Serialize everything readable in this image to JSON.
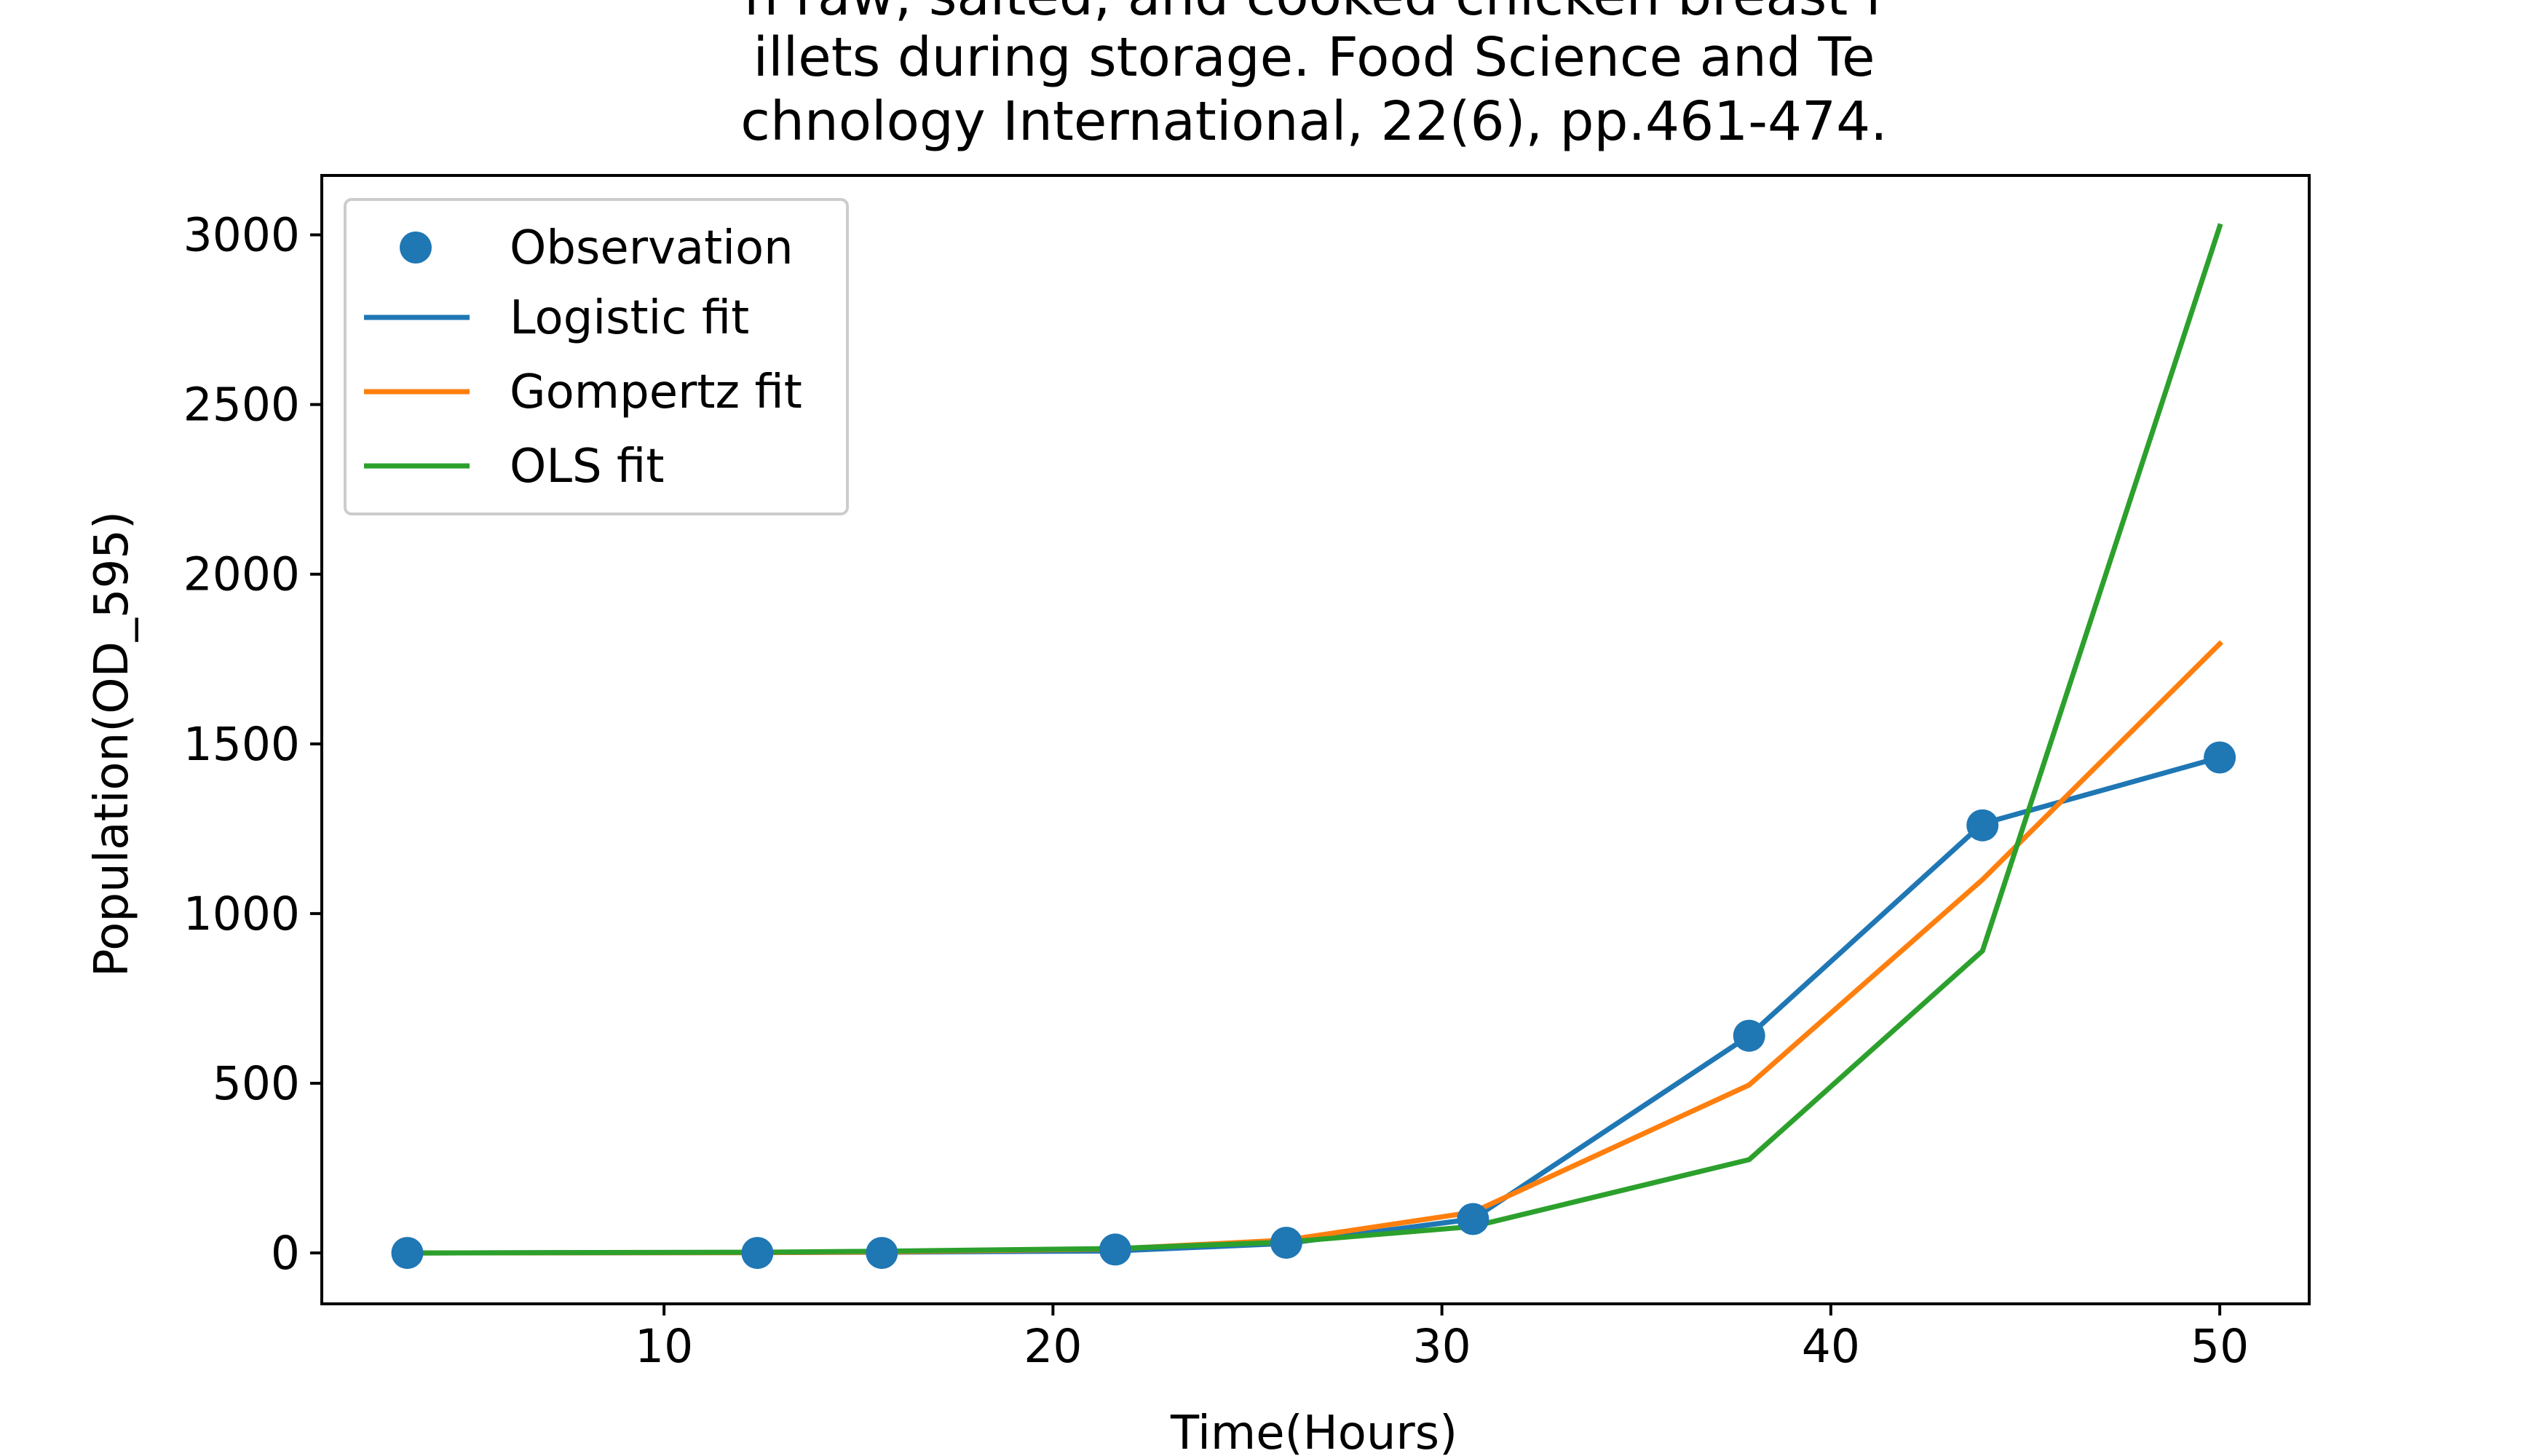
{
  "chart_data": {
    "type": "line",
    "title_lines": [
      "n raw, salted, and cooked chicken breast f",
      "illets during storage. Food Science and Te",
      "chnology International, 22(6), pp.461-474."
    ],
    "xlabel": "Time(Hours)",
    "ylabel": "Population(OD_595)",
    "xlim": [
      1.2,
      52.3
    ],
    "ylim": [
      -150,
      3175
    ],
    "x_ticks": [
      10,
      20,
      30,
      40,
      50
    ],
    "y_ticks": [
      0,
      500,
      1000,
      1500,
      2000,
      2500,
      3000
    ],
    "grid": false,
    "legend_position": "top-left",
    "x": [
      3.4,
      12.4,
      15.6,
      21.6,
      26.0,
      30.8,
      37.9,
      43.9,
      50.0
    ],
    "observation": {
      "name": "Observation",
      "color": "#1f77b4",
      "values": [
        0,
        0,
        0,
        10,
        30,
        100,
        640,
        1260,
        1460
      ]
    },
    "series": [
      {
        "name": "Logistic fit",
        "color": "#1f77b4",
        "values": [
          0,
          1,
          2,
          6,
          28,
          100,
          640,
          1265,
          1460
        ]
      },
      {
        "name": "Gompertz fit",
        "color": "#ff7f0e",
        "values": [
          0,
          1,
          3,
          12,
          38,
          120,
          495,
          1100,
          1795
        ]
      },
      {
        "name": "OLS fit",
        "color": "#2ca02c",
        "values": [
          0,
          2,
          5,
          13,
          32,
          78,
          275,
          890,
          3025
        ]
      }
    ]
  }
}
